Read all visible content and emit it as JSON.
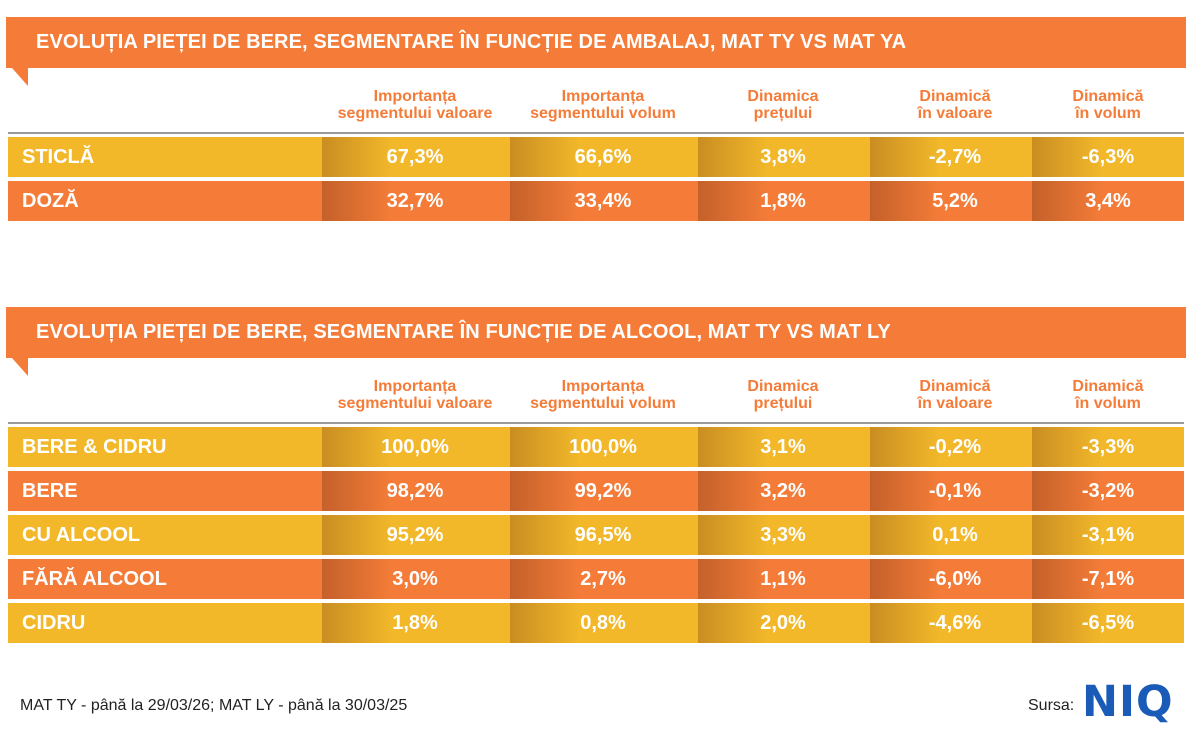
{
  "section1": {
    "title": "EVOLUȚIA PIEȚEI DE BERE, SEGMENTARE ÎN FUNCȚIE DE AMBALAJ, MAT TY VS MAT YA",
    "headers": [
      [
        "Importanța",
        "segmentului valoare"
      ],
      [
        "Importanța",
        "segmentului volum"
      ],
      [
        "Dinamica",
        "prețului"
      ],
      [
        "Dinamică",
        "în valoare"
      ],
      [
        "Dinamică",
        "în volum"
      ]
    ],
    "rows": [
      {
        "label": "STICLĂ",
        "values": [
          "67,3%",
          "66,6%",
          "3,8%",
          "-2,7%",
          "-6,3%"
        ]
      },
      {
        "label": "DOZĂ",
        "values": [
          "32,7%",
          "33,4%",
          "1,8%",
          "5,2%",
          "3,4%"
        ]
      }
    ]
  },
  "section2": {
    "title": "EVOLUȚIA PIEȚEI DE BERE, SEGMENTARE ÎN FUNCȚIE DE ALCOOL, MAT TY VS MAT LY",
    "headers": [
      [
        "Importanța",
        "segmentului valoare"
      ],
      [
        "Importanța",
        "segmentului volum"
      ],
      [
        "Dinamica",
        "prețului"
      ],
      [
        "Dinamică",
        "în valoare"
      ],
      [
        "Dinamică",
        "în volum"
      ]
    ],
    "rows": [
      {
        "label": "BERE & CIDRU",
        "values": [
          "100,0%",
          "100,0%",
          "3,1%",
          "-0,2%",
          "-3,3%"
        ]
      },
      {
        "label": "BERE",
        "values": [
          "98,2%",
          "99,2%",
          "3,2%",
          "-0,1%",
          "-3,2%"
        ]
      },
      {
        "label": "CU ALCOOL",
        "values": [
          "95,2%",
          "96,5%",
          "3,3%",
          "0,1%",
          "-3,1%"
        ]
      },
      {
        "label": "FĂRĂ ALCOOL",
        "values": [
          "3,0%",
          "2,7%",
          "1,1%",
          "-6,0%",
          "-7,1%"
        ]
      },
      {
        "label": "CIDRU",
        "values": [
          "1,8%",
          "0,8%",
          "2,0%",
          "-4,6%",
          "-6,5%"
        ]
      }
    ]
  },
  "footer": {
    "note": "MAT TY - până la 29/03/26; MAT LY - până la 30/03/25",
    "source_label": "Sursa:",
    "logo_text": "NIQ"
  },
  "colors": {
    "orange": "#f47c38",
    "yellow": "#f2b82a",
    "logo_blue": "#1a5bb8"
  }
}
